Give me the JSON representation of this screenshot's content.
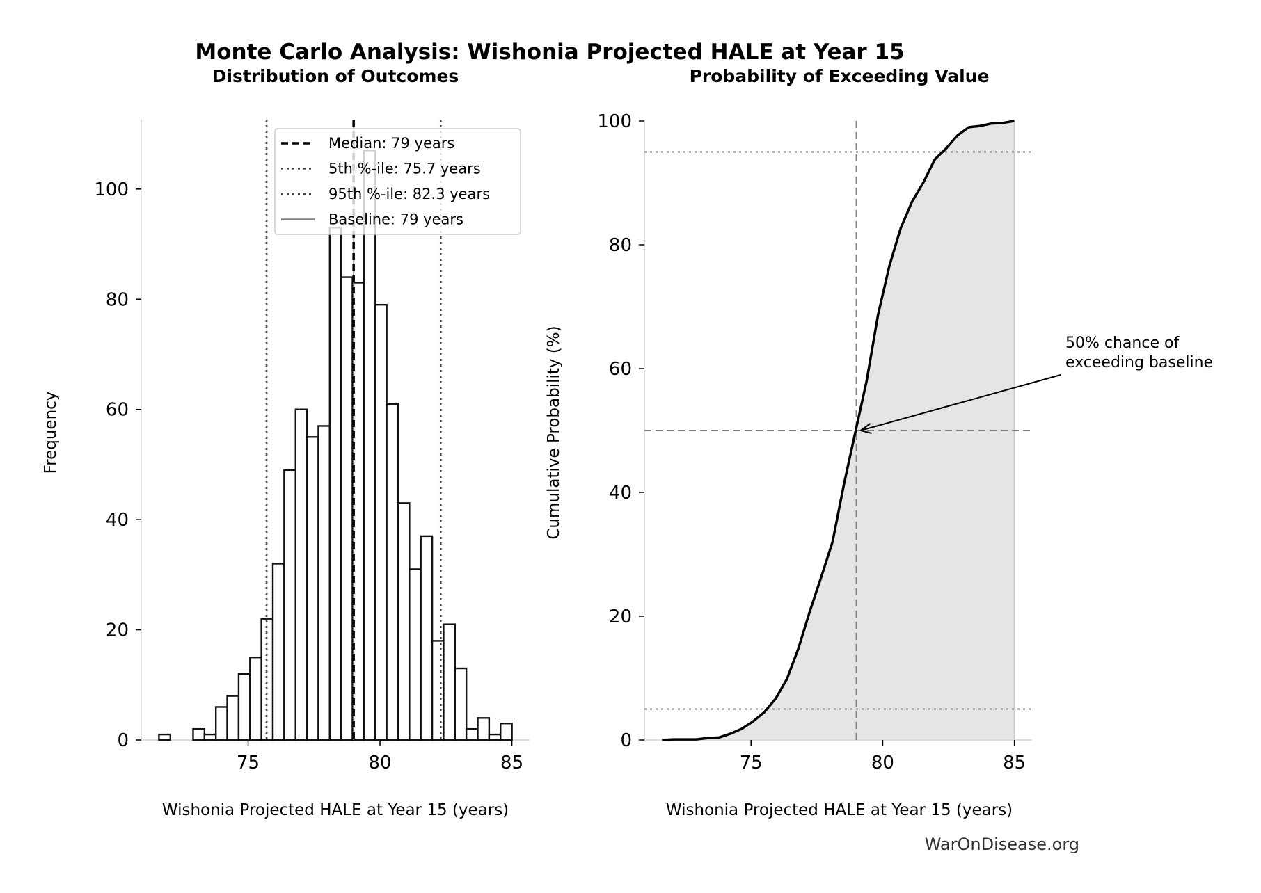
{
  "title": "Monte Carlo Analysis: Wishonia Projected HALE at Year 15",
  "footer": "WarOnDisease.org",
  "colors": {
    "line": "#000000",
    "fill": "#e5e5e5",
    "reference": "#808080",
    "percentile": "#444444"
  },
  "chart_data": [
    {
      "type": "bar",
      "subtype": "histogram",
      "title": "Distribution of Outcomes",
      "xlabel": "Wishonia Projected HALE at Year 15 (years)",
      "ylabel": "Frequency",
      "xlim": [
        70.95,
        85.67
      ],
      "ylim": [
        0,
        112.6
      ],
      "xticks": [
        75,
        80,
        85
      ],
      "yticks": [
        0,
        20,
        40,
        60,
        80,
        100
      ],
      "bin_start": 71.62,
      "bin_end": 85.0,
      "counts": [
        1,
        0,
        0,
        2,
        1,
        6,
        8,
        12,
        15,
        22,
        32,
        49,
        60,
        55,
        57,
        93,
        84,
        83,
        107,
        79,
        61,
        43,
        31,
        37,
        18,
        21,
        13,
        2,
        4,
        1,
        3
      ],
      "grid": false,
      "legend_position": "top-right",
      "reference_lines": [
        {
          "label": "Median: 79 years",
          "x": 79,
          "style": "dashed",
          "color": "#000000"
        },
        {
          "label": "5th %-ile: 75.7 years",
          "x": 75.7,
          "style": "dotted",
          "color": "#444444"
        },
        {
          "label": "95th %-ile: 82.3 years",
          "x": 82.3,
          "style": "dotted",
          "color": "#444444"
        },
        {
          "label": "Baseline: 79 years",
          "x": 79,
          "style": "solid",
          "color": "#808080"
        }
      ]
    },
    {
      "type": "area",
      "subtype": "cumulative-distribution",
      "title": "Probability of Exceeding Value",
      "xlabel": "Wishonia Projected HALE at Year 15 (years)",
      "ylabel": "Cumulative Probability (%)",
      "xlim": [
        70.95,
        85.67
      ],
      "ylim": [
        0,
        100
      ],
      "xticks": [
        75,
        80,
        85
      ],
      "yticks": [
        0,
        20,
        40,
        60,
        80,
        100
      ],
      "grid": false,
      "hlines": [
        {
          "y": 5,
          "style": "dotted"
        },
        {
          "y": 50,
          "style": "dashed"
        },
        {
          "y": 95,
          "style": "dotted"
        }
      ],
      "vlines": [
        {
          "x": 79,
          "style": "dashed"
        }
      ],
      "annotation": {
        "text": [
          "50% chance of",
          "exceeding baseline"
        ],
        "point": [
          79,
          50
        ]
      }
    }
  ]
}
